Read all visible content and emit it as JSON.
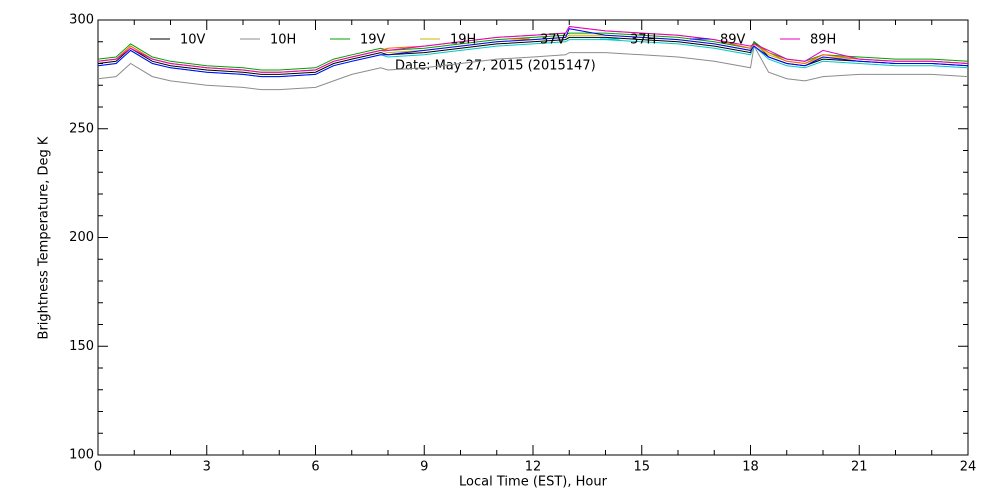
{
  "chart_data": {
    "type": "line",
    "xlabel": "Local Time (EST), Hour",
    "ylabel": "Brightness Temperature, Deg K",
    "annotation": "Date: May 27, 2015 (2015147)",
    "xlim": [
      0,
      24
    ],
    "xticks": [
      0,
      3,
      6,
      9,
      12,
      15,
      18,
      21,
      24
    ],
    "ylim": [
      100,
      300
    ],
    "yticks": [
      100,
      150,
      200,
      250,
      300
    ],
    "x": [
      0,
      0.5,
      0.9,
      1.5,
      2,
      3,
      4,
      4.5,
      5,
      6,
      6.5,
      7,
      7.8,
      8,
      9,
      10,
      11,
      12,
      12.9,
      13,
      14,
      15,
      16,
      17,
      18,
      18.1,
      18.5,
      19,
      19.5,
      20,
      21,
      22,
      23,
      24
    ],
    "series": [
      {
        "name": "10V",
        "color": "#000000",
        "values": [
          280,
          281,
          287,
          281,
          279,
          277,
          276,
          275,
          275,
          276,
          280,
          282,
          285,
          284,
          285,
          287,
          289,
          290,
          291,
          292,
          292,
          291,
          290,
          288,
          285,
          290,
          283,
          280,
          279,
          282,
          281,
          280,
          280,
          279
        ]
      },
      {
        "name": "10H",
        "color": "#8c8c8c",
        "values": [
          273,
          274,
          280,
          274,
          272,
          270,
          269,
          268,
          268,
          269,
          272,
          275,
          278,
          277,
          278,
          280,
          282,
          283,
          284,
          285,
          285,
          284,
          283,
          281,
          278,
          288,
          276,
          273,
          272,
          274,
          275,
          275,
          275,
          274
        ]
      },
      {
        "name": "19V",
        "color": "#00a000",
        "values": [
          282,
          283,
          289,
          283,
          281,
          279,
          278,
          277,
          277,
          278,
          282,
          284,
          287,
          286,
          287,
          289,
          291,
          292,
          293,
          294,
          294,
          293,
          292,
          290,
          287,
          290,
          285,
          282,
          281,
          284,
          283,
          282,
          282,
          281
        ]
      },
      {
        "name": "19H",
        "color": "#c8b400",
        "values": [
          281,
          282,
          288,
          282,
          280,
          278,
          277,
          276,
          276,
          277,
          281,
          283,
          286,
          285,
          286,
          288,
          290,
          291,
          292,
          293,
          293,
          292,
          291,
          289,
          286,
          289,
          284,
          281,
          280,
          283,
          282,
          281,
          281,
          280
        ]
      },
      {
        "name": "37V",
        "color": "#ff6400",
        "values": [
          281,
          282,
          288,
          282,
          280,
          278,
          277,
          276,
          276,
          277,
          281,
          283,
          286,
          287,
          288,
          290,
          292,
          293,
          294,
          297,
          295,
          294,
          293,
          291,
          287,
          289,
          285,
          281,
          280,
          284,
          282,
          281,
          281,
          280
        ]
      },
      {
        "name": "37H",
        "color": "#00c8c8",
        "values": [
          279,
          280,
          286,
          280,
          278,
          276,
          275,
          274,
          274,
          275,
          279,
          281,
          284,
          283,
          284,
          286,
          288,
          289,
          290,
          291,
          291,
          290,
          289,
          287,
          284,
          288,
          282,
          279,
          278,
          281,
          280,
          279,
          279,
          278
        ]
      },
      {
        "name": "89V",
        "color": "#0000ff",
        "values": [
          279,
          280,
          286,
          280,
          278,
          276,
          275,
          274,
          274,
          275,
          279,
          281,
          284,
          284,
          286,
          288,
          290,
          291,
          292,
          296,
          293,
          292,
          291,
          289,
          286,
          288,
          283,
          280,
          279,
          283,
          281,
          280,
          280,
          279
        ]
      },
      {
        "name": "89H",
        "color": "#e000c8",
        "values": [
          281,
          282,
          287,
          282,
          280,
          278,
          277,
          276,
          276,
          277,
          281,
          283,
          286,
          286,
          288,
          290,
          292,
          293,
          294,
          297,
          295,
          294,
          293,
          291,
          288,
          289,
          286,
          282,
          281,
          286,
          282,
          281,
          281,
          280
        ]
      }
    ]
  }
}
